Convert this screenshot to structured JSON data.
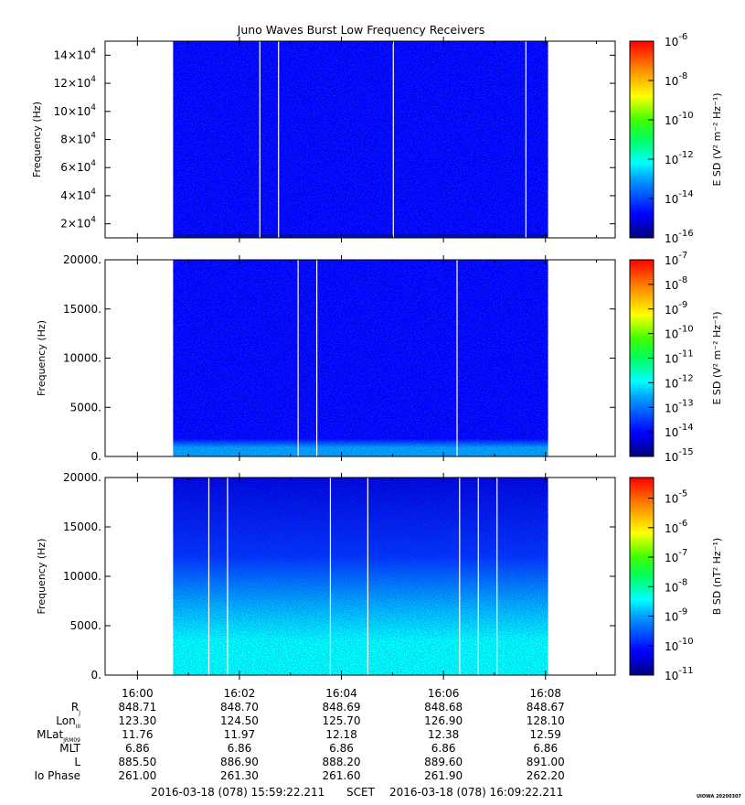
{
  "title": "Juno Waves Burst Low Frequency Receivers",
  "footer": {
    "start_label": "2016-03-18 (078) 15:59:22.211",
    "mid_label": "SCET",
    "end_label": "2016-03-18 (078) 16:09:22.211",
    "stamp": "UIOWA 20200307"
  },
  "chart_data": [
    {
      "type": "heatmap",
      "title": "",
      "xlabel": "",
      "ylabel": "Frequency (Hz)",
      "ylim": [
        10000,
        150000
      ],
      "yticks": [
        {
          "value": 20000,
          "label": "2x10",
          "exp": "4"
        },
        {
          "value": 40000,
          "label": "4x10",
          "exp": "4"
        },
        {
          "value": 60000,
          "label": "6x10",
          "exp": "4"
        },
        {
          "value": 80000,
          "label": "8x10",
          "exp": "4"
        },
        {
          "value": 100000,
          "label": "10x10",
          "exp": "4"
        },
        {
          "value": 120000,
          "label": "12x10",
          "exp": "4"
        },
        {
          "value": 140000,
          "label": "14x10",
          "exp": "4"
        }
      ],
      "data_time_range": [
        "16:00:42",
        "16:08:03"
      ],
      "gap_lines": [
        "16:02:24",
        "16:02:46",
        "16:05:01",
        "16:07:37"
      ],
      "low_band_intensity": "1e-14",
      "background_intensity": "1e-14",
      "colorbar": {
        "label": "E SD (V² m⁻² Hz⁻¹)",
        "scale": "log",
        "range": [
          -16,
          -6
        ],
        "ticks": [
          {
            "label": "10",
            "exp": "-6"
          },
          {
            "label": "10",
            "exp": "-8"
          },
          {
            "label": "10",
            "exp": "-10"
          },
          {
            "label": "10",
            "exp": "-12"
          },
          {
            "label": "10",
            "exp": "-14"
          },
          {
            "label": "10",
            "exp": "-16"
          }
        ]
      }
    },
    {
      "type": "heatmap",
      "title": "",
      "xlabel": "",
      "ylabel": "Frequency (Hz)",
      "ylim": [
        0,
        20000
      ],
      "yticks": [
        {
          "value": 0,
          "label": "0."
        },
        {
          "value": 5000,
          "label": "5000."
        },
        {
          "value": 10000,
          "label": "10000."
        },
        {
          "value": 15000,
          "label": "15000."
        },
        {
          "value": 20000,
          "label": "20000."
        }
      ],
      "data_time_range": [
        "16:00:42",
        "16:08:03"
      ],
      "gap_lines": [
        "16:03:09",
        "16:03:31",
        "16:06:16"
      ],
      "low_band_intensity": "1e-12",
      "background_intensity": "1e-13",
      "colorbar": {
        "label": "E SD (V² m⁻² Hz⁻¹)",
        "scale": "log",
        "range": [
          -15,
          -7
        ],
        "ticks": [
          {
            "label": "10",
            "exp": "-7"
          },
          {
            "label": "10",
            "exp": "-8"
          },
          {
            "label": "10",
            "exp": "-9"
          },
          {
            "label": "10",
            "exp": "-10"
          },
          {
            "label": "10",
            "exp": "-11"
          },
          {
            "label": "10",
            "exp": "-12"
          },
          {
            "label": "10",
            "exp": "-13"
          },
          {
            "label": "10",
            "exp": "-14"
          },
          {
            "label": "10",
            "exp": "-15"
          }
        ]
      }
    },
    {
      "type": "heatmap",
      "title": "",
      "xlabel": "",
      "ylabel": "Frequency (Hz)",
      "ylim": [
        0,
        20000
      ],
      "yticks": [
        {
          "value": 0,
          "label": "0."
        },
        {
          "value": 5000,
          "label": "5000."
        },
        {
          "value": 10000,
          "label": "10000."
        },
        {
          "value": 15000,
          "label": "15000."
        },
        {
          "value": 20000,
          "label": "20000."
        }
      ],
      "data_time_range": [
        "16:00:42",
        "16:08:03"
      ],
      "gap_lines": [
        "16:01:24",
        "16:01:46",
        "16:03:47",
        "16:04:31",
        "16:06:19",
        "16:06:41",
        "16:07:03"
      ],
      "low_band_intensity": "1e-8",
      "background_intensity": "1e-10",
      "colorbar": {
        "label": "B SD (nT² Hz⁻¹)",
        "scale": "log",
        "range": [
          -11,
          -4.3
        ],
        "ticks": [
          {
            "label": "10",
            "exp": "-5"
          },
          {
            "label": "10",
            "exp": "-6"
          },
          {
            "label": "10",
            "exp": "-7"
          },
          {
            "label": "10",
            "exp": "-8"
          },
          {
            "label": "10",
            "exp": "-9"
          },
          {
            "label": "10",
            "exp": "-10"
          },
          {
            "label": "10",
            "exp": "-11"
          }
        ]
      }
    }
  ],
  "x_axis": {
    "range": [
      "15:59:22",
      "16:09:22"
    ],
    "major_ticks": [
      {
        "time": "16:00",
        "label": "16:00"
      },
      {
        "time": "16:02",
        "label": "16:02"
      },
      {
        "time": "16:04",
        "label": "16:04"
      },
      {
        "time": "16:06",
        "label": "16:06"
      },
      {
        "time": "16:08",
        "label": "16:08"
      }
    ],
    "minor_ticks": [
      "16:01",
      "16:03",
      "16:05",
      "16:07",
      "16:09"
    ]
  },
  "ephemeris": {
    "rows": [
      {
        "label": "R",
        "sub": "J",
        "values": [
          "848.71",
          "848.70",
          "848.69",
          "848.68",
          "848.67"
        ]
      },
      {
        "label": "Lon",
        "sub": "III",
        "values": [
          "123.30",
          "124.50",
          "125.70",
          "126.90",
          "128.10"
        ]
      },
      {
        "label": "MLat",
        "sub": "JRM09",
        "values": [
          "11.76",
          "11.97",
          "12.18",
          "12.38",
          "12.59"
        ]
      },
      {
        "label": "MLT",
        "sub": "",
        "values": [
          "6.86",
          "6.86",
          "6.86",
          "6.86",
          "6.86"
        ]
      },
      {
        "label": "L",
        "sub": "",
        "values": [
          "885.50",
          "886.90",
          "888.20",
          "889.60",
          "891.00"
        ]
      },
      {
        "label": "Io Phase",
        "sub": "",
        "values": [
          "261.00",
          "261.30",
          "261.60",
          "261.90",
          "262.20"
        ]
      }
    ]
  }
}
